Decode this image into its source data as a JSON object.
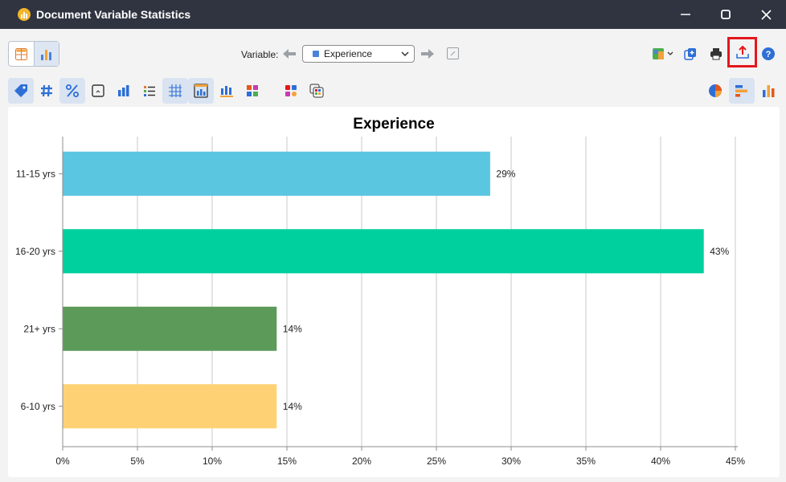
{
  "window": {
    "title": "Document Variable Statistics",
    "icon": "chart-app-icon",
    "controls": [
      "minimize-icon",
      "maximize-icon",
      "close-icon"
    ]
  },
  "toolbar": {
    "variable_label": "Variable:",
    "variable_value": "Experience",
    "variable_color": "#4a84d8",
    "view_modes": [
      "table-view-icon",
      "chart-view-icon"
    ],
    "active_view": "chart-view-icon",
    "right_icons": [
      "excel-export-icon",
      "copy-icon",
      "print-icon",
      "export-icon",
      "help-icon"
    ]
  },
  "toolbar2": {
    "icons": [
      "tag-icon",
      "hash-icon",
      "percent-icon",
      "frame-icon",
      "bar-chart-icon",
      "list-icon",
      "grid-icon",
      "column-chart-icon",
      "bars-icon",
      "color-blocks-icon",
      "palette-icon",
      "palette-alt-icon"
    ],
    "right_icons": [
      "pie-chart-icon",
      "horizontal-bar-icon",
      "vertical-bar-icon"
    ]
  },
  "chart_data": {
    "type": "bar",
    "orientation": "horizontal",
    "title": "Experience",
    "categories": [
      "11-15 yrs",
      "16-20 yrs",
      "21+ yrs",
      "6-10 yrs"
    ],
    "values": [
      28.57,
      42.86,
      14.29,
      14.29
    ],
    "value_labels": [
      "29%",
      "43%",
      "14%",
      "14%"
    ],
    "colors": [
      "#5bc6e0",
      "#00d09e",
      "#5c9a5a",
      "#fed274"
    ],
    "xlim": [
      0,
      45
    ],
    "x_ticks": [
      "0%",
      "5%",
      "10%",
      "15%",
      "20%",
      "25%",
      "30%",
      "35%",
      "40%",
      "45%"
    ],
    "grid": "vertical"
  }
}
